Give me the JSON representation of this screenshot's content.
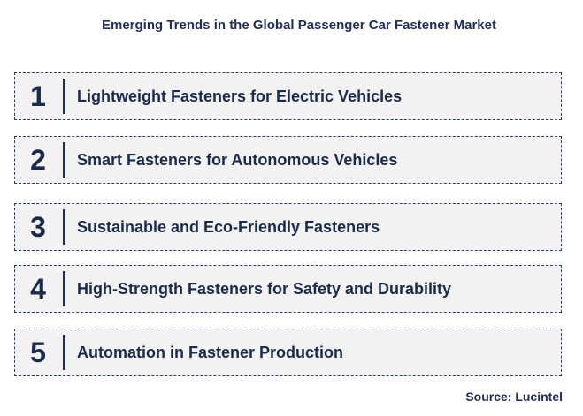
{
  "header": {
    "title": "Emerging Trends in the Global Passenger Car Fastener Market"
  },
  "items": [
    {
      "number": "1",
      "label": "Lightweight Fasteners for Electric Vehicles"
    },
    {
      "number": "2",
      "label": "Smart Fasteners for Autonomous Vehicles"
    },
    {
      "number": "3",
      "label": "Sustainable and Eco-Friendly Fasteners"
    },
    {
      "number": "4",
      "label": "High-Strength Fasteners for Safety and Durability"
    },
    {
      "number": "5",
      "label": "Automation in Fastener Production"
    }
  ],
  "footer": {
    "source": "Source: Lucintel"
  }
}
